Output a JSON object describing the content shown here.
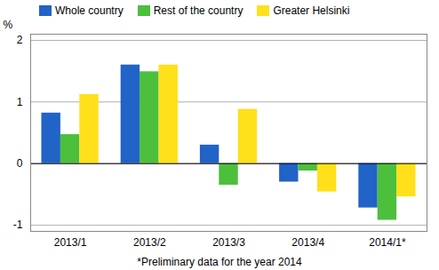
{
  "chart_data": {
    "type": "bar",
    "y_label": "%",
    "caption": "*Preliminary data for the year 2014",
    "categories": [
      "2013/1",
      "2013/2",
      "2013/3",
      "2013/4",
      "2014/1*"
    ],
    "series": [
      {
        "name": "Whole country",
        "color": "#2163c6",
        "values": [
          0.82,
          1.6,
          0.3,
          -0.3,
          -0.72
        ]
      },
      {
        "name": "Rest of the country",
        "color": "#4cbf3c",
        "values": [
          0.47,
          1.49,
          -0.35,
          -0.12,
          -0.92
        ]
      },
      {
        "name": "Greater Helsinki",
        "color": "#ffe01a",
        "values": [
          1.12,
          1.6,
          0.88,
          -0.46,
          -0.54
        ]
      }
    ],
    "ylim": [
      -1.1,
      2.1
    ],
    "yticks": [
      -1,
      0,
      1,
      2
    ],
    "grid": true,
    "legend": "top-left"
  }
}
